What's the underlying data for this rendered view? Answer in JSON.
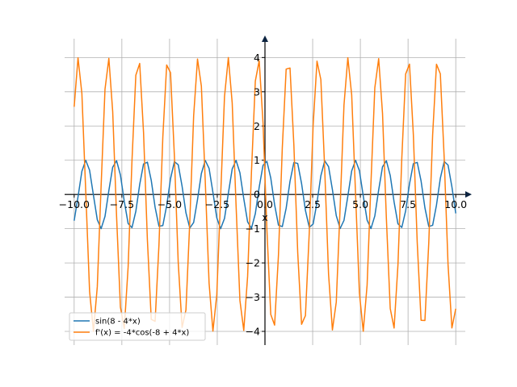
{
  "chart_data": {
    "type": "line",
    "title": "",
    "xlabel": "x",
    "ylabel": "",
    "xlim": [
      -10.5,
      10.5
    ],
    "ylim": [
      -4.4,
      4.55
    ],
    "grid": true,
    "legend_position": "lower-left",
    "x_ticks": [
      -10.0,
      -7.5,
      -5.0,
      -2.5,
      0.0,
      2.5,
      5.0,
      7.5,
      10.0
    ],
    "x_tick_labels": [
      "−10.0",
      "−7.5",
      "−5.0",
      "−2.5",
      "0.0",
      "2.5",
      "5.0",
      "7.5",
      "10.0"
    ],
    "y_ticks": [
      -4,
      -3,
      -2,
      -1,
      0,
      1,
      2,
      3,
      4
    ],
    "y_tick_labels": [
      "−4",
      "−3",
      "−2",
      "−1",
      "0",
      "1",
      "2",
      "3",
      "4"
    ],
    "x_range": [
      -10,
      10
    ],
    "samples": 100,
    "series": [
      {
        "name": "sin(8 - 4*x)",
        "expression": "sin(8 - 4*x)",
        "color": "#1f77b4"
      },
      {
        "name": "f'(x) = -4*cos(-8 + 4*x)",
        "expression": "-4*cos(-8 + 4*x)",
        "color": "#ff7f0e"
      }
    ]
  }
}
